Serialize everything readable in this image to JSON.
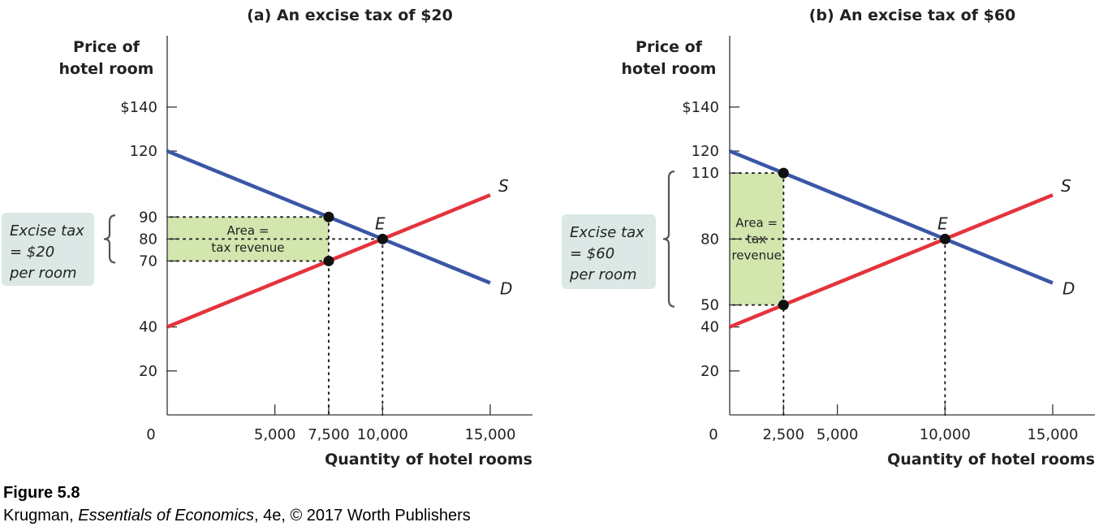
{
  "chart_data": [
    {
      "type": "line",
      "title": "(a) An excise tax of $20",
      "ylabel_lines": [
        "Price of",
        "hotel room"
      ],
      "xlabel": "Quantity of hotel rooms",
      "origin_label": "0",
      "xlim": [
        0,
        17000
      ],
      "ylim": [
        0,
        150
      ],
      "x_ticks": [
        {
          "v": 5000,
          "label": "5,000"
        },
        {
          "v": 7500,
          "label": "7,500"
        },
        {
          "v": 10000,
          "label": "10,000"
        },
        {
          "v": 15000,
          "label": "15,000"
        }
      ],
      "y_ticks": [
        {
          "v": 20,
          "label": "20"
        },
        {
          "v": 40,
          "label": "40"
        },
        {
          "v": 70,
          "label": "70"
        },
        {
          "v": 80,
          "label": "80"
        },
        {
          "v": 90,
          "label": "90"
        },
        {
          "v": 120,
          "label": "120"
        },
        {
          "v": 140,
          "label": "$140"
        }
      ],
      "series": [
        {
          "name": "D",
          "color": "#3a56a8",
          "points": [
            [
              0,
              120
            ],
            [
              15000,
              60
            ]
          ]
        },
        {
          "name": "S",
          "color": "#e4333c",
          "points": [
            [
              0,
              40
            ],
            [
              15000,
              100
            ]
          ]
        }
      ],
      "equilibrium": {
        "label": "E",
        "x": 10000,
        "y": 80
      },
      "tax_points": [
        [
          7500,
          90
        ],
        [
          7500,
          70
        ]
      ],
      "tax_quantity": 7500,
      "price_paid": 90,
      "price_received": 70,
      "tax_area_label": [
        "Area =",
        "tax revenue"
      ],
      "tax_box": [
        "Excise tax",
        "= $20",
        "per room"
      ]
    },
    {
      "type": "line",
      "title": "(b) An excise tax of $60",
      "ylabel_lines": [
        "Price of",
        "hotel room"
      ],
      "xlabel": "Quantity of hotel rooms",
      "origin_label": "0",
      "xlim": [
        0,
        17000
      ],
      "ylim": [
        0,
        150
      ],
      "x_ticks": [
        {
          "v": 2500,
          "label": "2,500"
        },
        {
          "v": 5000,
          "label": "5,000"
        },
        {
          "v": 10000,
          "label": "10,000"
        },
        {
          "v": 15000,
          "label": "15,000"
        }
      ],
      "y_ticks": [
        {
          "v": 20,
          "label": "20"
        },
        {
          "v": 40,
          "label": "40"
        },
        {
          "v": 50,
          "label": "50"
        },
        {
          "v": 80,
          "label": "80"
        },
        {
          "v": 110,
          "label": "110"
        },
        {
          "v": 120,
          "label": "120"
        },
        {
          "v": 140,
          "label": "$140"
        }
      ],
      "series": [
        {
          "name": "D",
          "color": "#3a56a8",
          "points": [
            [
              0,
              120
            ],
            [
              15000,
              60
            ]
          ]
        },
        {
          "name": "S",
          "color": "#e4333c",
          "points": [
            [
              0,
              40
            ],
            [
              15000,
              100
            ]
          ]
        }
      ],
      "equilibrium": {
        "label": "E",
        "x": 10000,
        "y": 80
      },
      "tax_points": [
        [
          2500,
          110
        ],
        [
          2500,
          50
        ]
      ],
      "tax_quantity": 2500,
      "price_paid": 110,
      "price_received": 50,
      "tax_area_label": [
        "Area =",
        "tax",
        "revenue"
      ],
      "tax_box": [
        "Excise tax",
        "= $60",
        "per room"
      ]
    }
  ],
  "caption": {
    "figure": "Figure 5.8",
    "source_author": "Krugman, ",
    "source_book": "Essentials of Economics",
    "source_rest": ", 4e, © 2017 Worth Publishers"
  },
  "colors": {
    "demand": "#3a56a8",
    "supply": "#e4333c",
    "tax_area": "#d2e6ae",
    "tax_box": "#dbe8e5",
    "dot": "#111111"
  }
}
